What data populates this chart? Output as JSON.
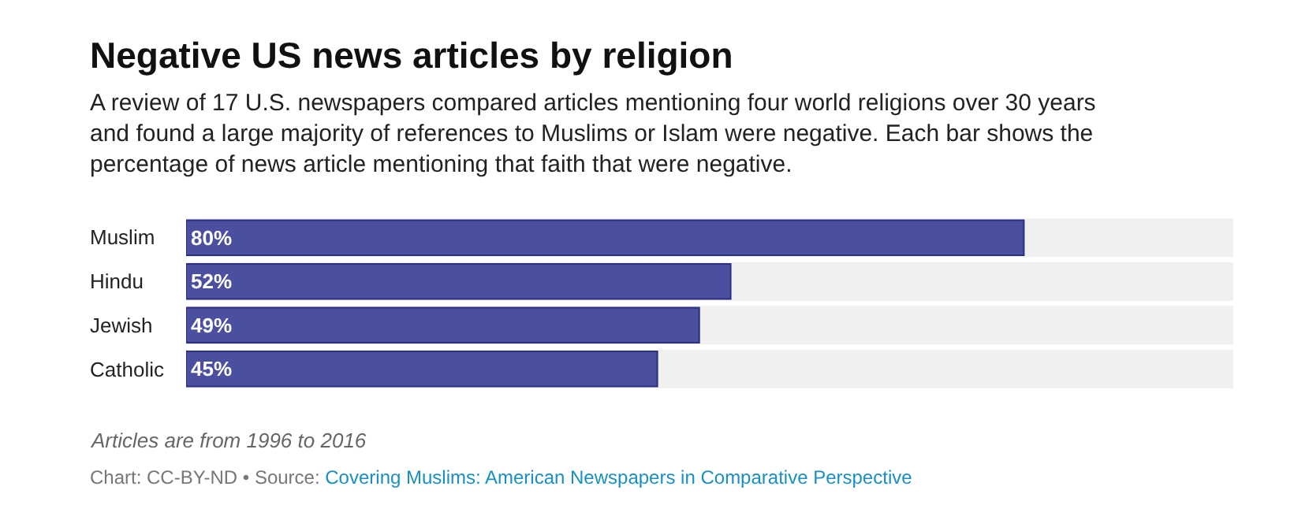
{
  "chart_data": {
    "type": "bar",
    "orientation": "horizontal",
    "title": "Negative US news articles by religion",
    "subtitle": "A review of 17 U.S. newspapers compared articles mentioning four world religions over 30 years and found a large majority of references to Muslims or Islam were negative. Each bar shows the percentage of news article mentioning that faith that were negative.",
    "categories": [
      "Muslim",
      "Hindu",
      "Jewish",
      "Catholic"
    ],
    "values": [
      80,
      52,
      49,
      45
    ],
    "value_labels": [
      "80%",
      "52%",
      "49%",
      "45%"
    ],
    "color": "#4a4fa0",
    "xlim": [
      0,
      100
    ],
    "tick_labels": "y",
    "legend": false,
    "annotations": [
      "Articles are from 1996 to 2016",
      "Chart: CC-BY-ND • Source:",
      "Covering Muslims: American Newspapers in Comparative Perspective"
    ]
  }
}
